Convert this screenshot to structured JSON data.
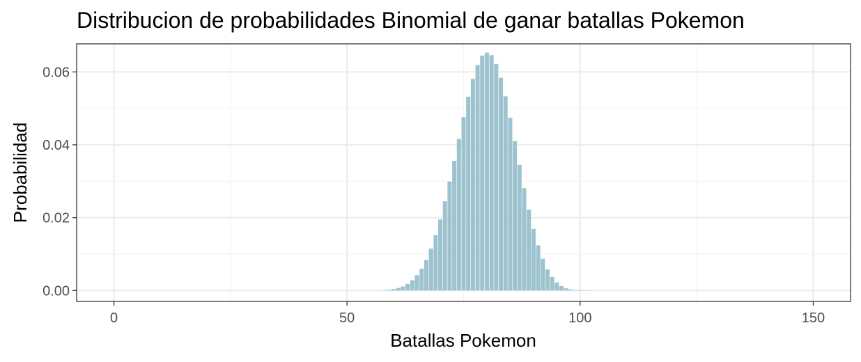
{
  "chart_data": {
    "type": "bar",
    "title": "Distribucion de probabilidades Binomial de ganar batallas Pokemon",
    "xlabel": "Batallas Pokemon",
    "ylabel": "Probabilidad",
    "xlim": [
      -8,
      158
    ],
    "ylim": [
      -0.003,
      0.0677
    ],
    "x_ticks": [
      0,
      50,
      100,
      150
    ],
    "y_ticks": [
      0.0,
      0.02,
      0.04,
      0.06
    ],
    "x_tick_labels": [
      "0",
      "50",
      "100",
      "150"
    ],
    "y_tick_labels": [
      "0.00",
      "0.02",
      "0.04",
      "0.06"
    ],
    "grid": true,
    "bar_color": "#9dc3cf",
    "x": [
      58,
      59,
      60,
      61,
      62,
      63,
      64,
      65,
      66,
      67,
      68,
      69,
      70,
      71,
      72,
      73,
      74,
      75,
      76,
      77,
      78,
      79,
      80,
      81,
      82,
      83,
      84,
      85,
      86,
      87,
      88,
      89,
      90,
      91,
      92,
      93,
      94,
      95,
      96,
      97,
      98,
      99,
      100,
      101,
      102
    ],
    "values": [
      0.0001,
      0.0002,
      0.0004,
      0.0007,
      0.0011,
      0.0018,
      0.0028,
      0.0042,
      0.006,
      0.0084,
      0.0115,
      0.0152,
      0.0195,
      0.0245,
      0.0299,
      0.0356,
      0.0416,
      0.0476,
      0.0532,
      0.0581,
      0.0619,
      0.0645,
      0.0653,
      0.0646,
      0.0622,
      0.0584,
      0.0533,
      0.0474,
      0.041,
      0.0345,
      0.0281,
      0.0222,
      0.0169,
      0.0124,
      0.0087,
      0.0058,
      0.0037,
      0.0022,
      0.0012,
      0.0006,
      0.0003,
      0.0001,
      0.0001,
      0.0,
      0.0
    ]
  }
}
